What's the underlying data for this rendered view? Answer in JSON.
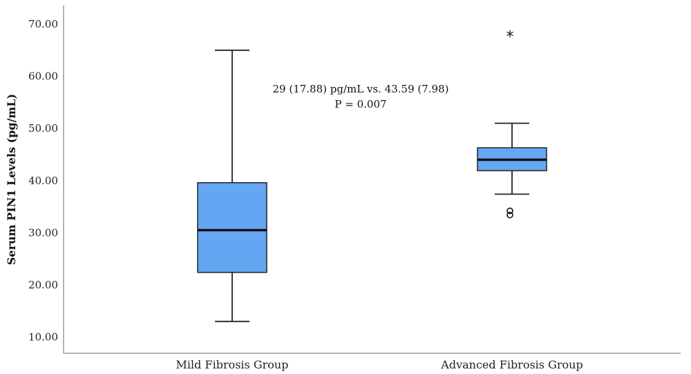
{
  "chart_data": {
    "type": "box",
    "ylabel": "Serum PIN1 Levels (pg/mL)",
    "xlabel": "",
    "ylim": [
      8,
      73
    ],
    "yticks": [
      10,
      20,
      30,
      40,
      50,
      60,
      70
    ],
    "ytick_labels": [
      "10.00",
      "20.00",
      "30.00",
      "40.00",
      "50.00",
      "60.00",
      "70.00"
    ],
    "grid": false,
    "box_color": "#64a6f2",
    "categories": [
      "Mild Fibrosis Group",
      "Advanced Fibrosis Group"
    ],
    "boxes": [
      {
        "category": "Mild Fibrosis Group",
        "whisker_low": 13,
        "q1": 22.4,
        "median": 30.5,
        "q3": 39.6,
        "whisker_high": 65,
        "outliers": [],
        "extremes": []
      },
      {
        "category": "Advanced Fibrosis Group",
        "whisker_low": 37.4,
        "q1": 41.9,
        "median": 44,
        "q3": 46.3,
        "whisker_high": 51,
        "outliers": [
          33.4,
          34.2
        ],
        "extremes": [
          67.8
        ]
      }
    ],
    "annotation": [
      "29 (17.88) pg/mL vs. 43.59 (7.98)",
      "P = 0.007"
    ]
  }
}
